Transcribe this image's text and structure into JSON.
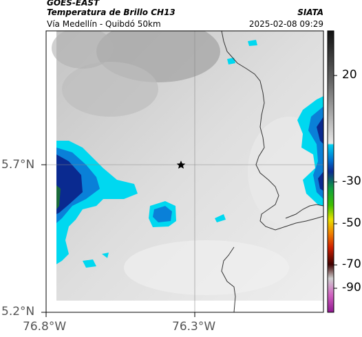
{
  "header": {
    "satellite": "GOES-EAST",
    "product": "Temperatura de Brillo CH13",
    "region": "Vía Medellín - Quibdó 50km",
    "agency": "SIATA",
    "datetime": "2025-02-08 09:29"
  },
  "axes": {
    "lat_ticks": [
      "5.7°N",
      "5.2°N"
    ],
    "lon_ticks": [
      "76.8°W",
      "76.3°W"
    ]
  },
  "colorbar": {
    "ticks": [
      "20",
      "-30",
      "-50",
      "-70",
      "-90"
    ],
    "colors": [
      "#1a1a1a",
      "#5a5a5a",
      "#9a9a9a",
      "#d8d8d8",
      "#00c8e8",
      "#0a3aa0",
      "#1a7a1a",
      "#e0d000",
      "#e04000",
      "#300000",
      "#b0b0b0",
      "#a020a0"
    ]
  },
  "map": {
    "marker_icon": "star-icon",
    "colors": {
      "cold_cloud": "#00d8f0",
      "deep_cloud": "#0a2a90",
      "coast": "#333333"
    }
  }
}
